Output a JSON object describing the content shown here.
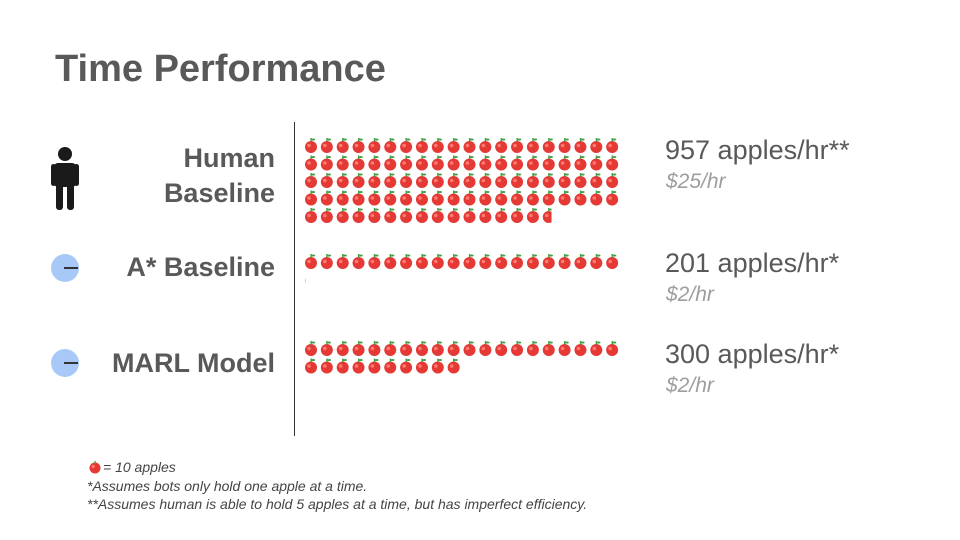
{
  "page": {
    "title": "Time Performance"
  },
  "chart_data": {
    "type": "pictograph",
    "unit_value": 10,
    "unit_label": "= 10 apples",
    "unit_icon": "apple-icon",
    "categories": [
      "Human Baseline",
      "A* Baseline",
      "MARL Model"
    ],
    "series": [
      {
        "values": [
          957,
          201,
          300
        ],
        "rates": [
          "957 apples/hr**",
          "201 apples/hr*",
          "300 apples/hr*"
        ],
        "costs": [
          "$25/hr",
          "$2/hr",
          "$2/hr"
        ]
      }
    ],
    "category_icons": [
      "person-icon",
      "robot-dot-icon",
      "robot-dot-icon"
    ]
  },
  "rows": [
    {
      "label_line1": "Human",
      "label_line2": "Baseline",
      "label": "",
      "rate": "957 apples/hr**",
      "cost": "$25/hr"
    },
    {
      "label_line1": "",
      "label_line2": "",
      "label": "A* Baseline",
      "rate": "201 apples/hr*",
      "cost": "$2/hr"
    },
    {
      "label_line1": "",
      "label_line2": "",
      "label": "MARL Model",
      "rate": "300 apples/hr*",
      "cost": "$2/hr"
    }
  ],
  "footnotes": {
    "legend": "= 10 apples",
    "note1": "*Assumes bots only hold one apple at a time.",
    "note2": "**Assumes human is able to hold 5 apples at a time, but has imperfect efficiency."
  },
  "colors": {
    "apple": "#e53935",
    "apple_highlight": "#ff7a70",
    "stem": "#43a047",
    "robot_dot": "#a8c8f8",
    "person": "#1a1a1a"
  }
}
